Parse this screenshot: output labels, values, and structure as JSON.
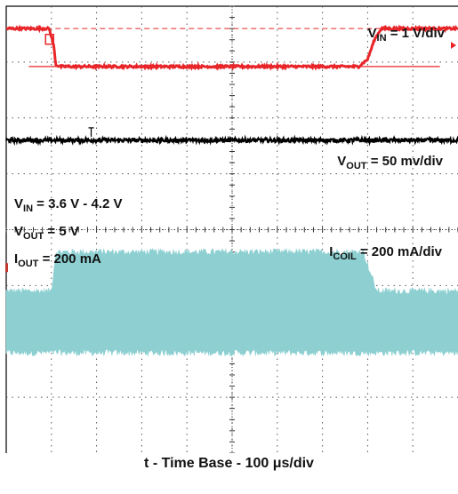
{
  "chart_data": {
    "type": "line",
    "title": "",
    "xlabel": "t - Time Base - 100 μs/div",
    "ylabel": "",
    "grid": true,
    "divisions": {
      "x": 10,
      "y": 8
    },
    "xlim": [
      0,
      10
    ],
    "ylim": [
      0,
      8
    ],
    "series": [
      {
        "name": "VIN",
        "scale_main": "V",
        "scale_sub": "IN",
        "scale_rest": " = 1 V/div",
        "color": "#e8262a",
        "x": [
          0,
          0.95,
          1.05,
          1.1,
          1.2,
          4.0,
          7.8,
          8.0,
          8.15,
          8.3,
          10
        ],
        "y": [
          7.6,
          7.6,
          7.3,
          6.95,
          6.92,
          6.92,
          6.92,
          7.05,
          7.4,
          7.6,
          7.6
        ]
      },
      {
        "name": "VOUT",
        "scale_main": "V",
        "scale_sub": "OUT",
        "scale_rest": " = 50 mv/div",
        "color": "#000000",
        "x": [
          0,
          10
        ],
        "y": [
          5.6,
          5.6
        ]
      },
      {
        "name": "ICOIL",
        "scale_main": "I",
        "scale_sub": "COIL",
        "scale_rest": " = 200 mA/div",
        "color": "#8ed0d2",
        "x": [
          0,
          1.0,
          1.1,
          4.0,
          7.9,
          8.2,
          10
        ],
        "y_low": [
          1.8,
          1.8,
          1.8,
          1.8,
          1.8,
          1.8,
          1.8
        ],
        "y_high": [
          2.9,
          2.9,
          3.6,
          3.6,
          3.6,
          2.9,
          2.9
        ]
      }
    ],
    "reference_lines": {
      "dashed_level": 7.6,
      "solid_level": 6.92
    },
    "conditions": [
      {
        "main": "V",
        "sub": "IN",
        "rest": " = 3.6 V - 4.2 V"
      },
      {
        "main": "V",
        "sub": "OUT",
        "rest": " = 5 V"
      },
      {
        "main": "I",
        "sub": "OUT",
        "rest": " = 200 mA"
      }
    ]
  }
}
